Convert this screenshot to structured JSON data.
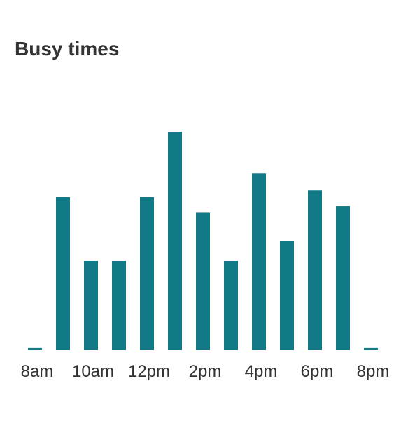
{
  "widget": {
    "title": "Busy times"
  },
  "chart_data": {
    "type": "bar",
    "title": "Busy times",
    "xlabel": "",
    "ylabel": "",
    "grid": false,
    "color": "#127a87",
    "hours": [
      "8am",
      "9am",
      "10am",
      "11am",
      "12pm",
      "1pm",
      "2pm",
      "3pm",
      "4pm",
      "5pm",
      "6pm",
      "7pm",
      "8pm"
    ],
    "x_tick_labels": [
      "8am",
      "10am",
      "12pm",
      "2pm",
      "4pm",
      "6pm",
      "8pm"
    ],
    "values": [
      1,
      70,
      41,
      41,
      70,
      100,
      63,
      41,
      81,
      50,
      73,
      66,
      1
    ],
    "ylim": [
      0,
      100
    ]
  }
}
